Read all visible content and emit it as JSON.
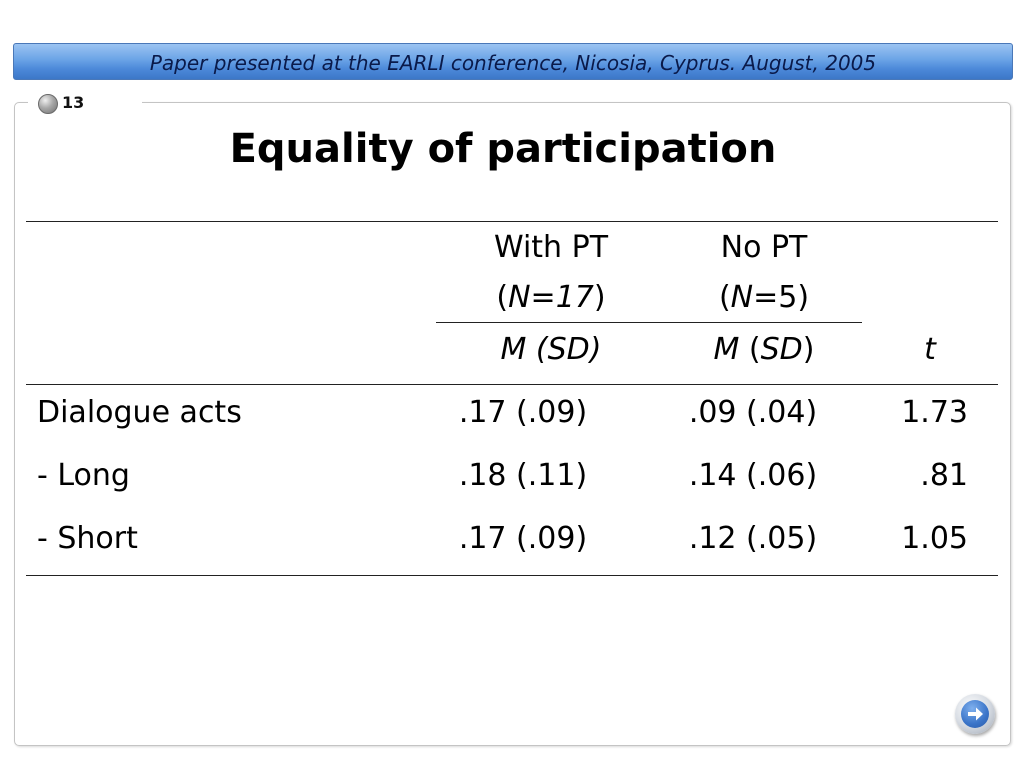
{
  "header": {
    "banner_text": "Paper presented at the EARLI conference, Nicosia, Cyprus. August, 2005"
  },
  "slide": {
    "number": "13",
    "title": "Equality of participation"
  },
  "table": {
    "columns": [
      {
        "group": "With PT",
        "n_open": "(",
        "n_label": "N=17",
        "n_close": ")",
        "stat_m": "M",
        "stat_sd_open": " (",
        "stat_sd": "SD",
        "stat_sd_close": ")"
      },
      {
        "group": "No PT",
        "n_open": "(",
        "n_italic": "N",
        "n_value": "=5",
        "n_close": ")",
        "stat_m": "M",
        "stat_sd_open": " (",
        "stat_sd": "SD",
        "stat_sd_close": ")"
      }
    ],
    "t_header": "t",
    "rows": [
      {
        "label": "Dialogue acts",
        "with_pt": ".17 (.09)",
        "no_pt": ".09 (.04)",
        "t": "1.73"
      },
      {
        "label": "- Long",
        "with_pt": ".18 (.11)",
        "no_pt": ".14 (.06)",
        "t": ".81"
      },
      {
        "label": "- Short",
        "with_pt": ".17 (.09)",
        "no_pt": ".12 (.05)",
        "t": "1.05"
      }
    ]
  },
  "navigation": {
    "next_icon": "arrow-right-icon"
  },
  "colors": {
    "banner_top": "#9cc4f2",
    "banner_bottom": "#3c77c8",
    "banner_text": "#0a1a4a"
  }
}
